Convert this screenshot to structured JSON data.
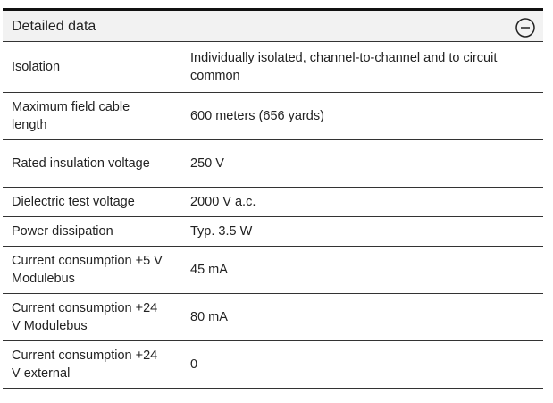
{
  "header": {
    "title": "Detailed data"
  },
  "table": {
    "rows": [
      [
        "Isolation",
        "Individually isolated, channel-to-channel and to circuit common"
      ],
      [
        "Maximum field cable length",
        "600 meters (656 yards)"
      ],
      [
        "Rated insulation voltage",
        "250 V"
      ],
      [
        "Dielectric test voltage",
        "2000 V a.c."
      ],
      [
        "Power dissipation",
        "Typ. 3.5 W"
      ],
      [
        "Current consumption +5 V Modulebus",
        "45 mA"
      ],
      [
        "Current consumption +24 V Modulebus",
        "80 mA"
      ],
      [
        "Current consumption +24 V external",
        "0"
      ]
    ]
  }
}
